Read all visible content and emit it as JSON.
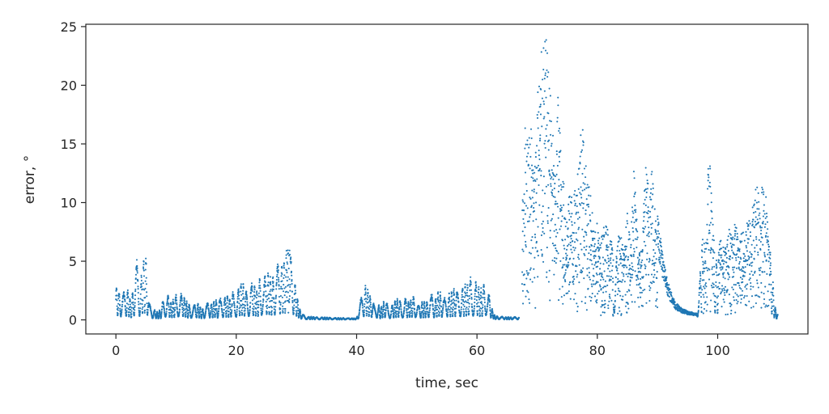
{
  "chart_data": {
    "type": "scatter",
    "title": "",
    "xlabel": "time, sec",
    "ylabel": "error, °",
    "xlim": [
      -5,
      115
    ],
    "ylim": [
      -1.2,
      25.2
    ],
    "x_ticks": [
      0,
      20,
      40,
      60,
      80,
      100
    ],
    "y_ticks": [
      0,
      5,
      10,
      15,
      20,
      25
    ],
    "grid": false,
    "legend": "none",
    "colors": {
      "series": "#1f77b4",
      "frame": "#262626"
    },
    "segments": [
      {
        "t": [
          0,
          0.5,
          1,
          1.5,
          2,
          2.5,
          3,
          3.5,
          4,
          4.5,
          5,
          5.5,
          6,
          6.5,
          7,
          7.5,
          8,
          8.5,
          9,
          9.5,
          10,
          10.5,
          11,
          11.5,
          12,
          12.5,
          13,
          13.5,
          14,
          14.5,
          15,
          15.5,
          16,
          16.5,
          17,
          17.5,
          18,
          18.5,
          19,
          19.5,
          20,
          20.5,
          21,
          21.5,
          22,
          22.5,
          23,
          23.5,
          24,
          24.5,
          25,
          25.5,
          26,
          26.5,
          27,
          27.5,
          28,
          28.5,
          29,
          29.5,
          30,
          30.5,
          31,
          31.5,
          32
        ],
        "peak": [
          3.1,
          2.5,
          2.6,
          2.3,
          2.8,
          1.5,
          3.2,
          5.3,
          2.5,
          5.5,
          5.6,
          1.4,
          1.2,
          0.8,
          0.6,
          1.0,
          2.0,
          2.5,
          1.5,
          1.8,
          2.2,
          2.4,
          2.3,
          1.9,
          1.4,
          1.2,
          1.3,
          1.5,
          1.2,
          0.9,
          1.3,
          1.6,
          1.4,
          1.8,
          1.5,
          2.0,
          1.9,
          2.2,
          1.8,
          2.5,
          2.1,
          2.9,
          3.3,
          2.6,
          2.8,
          3.4,
          3.0,
          2.5,
          4.0,
          3.2,
          4.4,
          3.8,
          3.5,
          4.3,
          5.0,
          4.7,
          5.5,
          6.2,
          6.0,
          4.0,
          2.5,
          1.0,
          0.5,
          0.3,
          0.2
        ]
      },
      {
        "t": [
          32,
          34,
          36,
          38,
          40,
          40.5,
          41,
          41.5,
          42,
          42.5,
          43,
          43.5,
          44,
          44.5,
          45,
          45.5,
          46,
          46.5,
          47,
          47.5,
          48,
          48.5,
          49,
          49.5,
          50,
          50.5,
          51,
          51.5,
          52,
          52.5,
          53,
          53.5,
          54,
          54.5,
          55,
          55.5,
          56,
          56.5,
          57,
          57.5,
          58,
          58.5,
          59,
          59.5,
          60,
          60.5,
          61,
          61.5,
          62,
          62.5,
          63,
          65,
          67
        ],
        "peak": [
          0.25,
          0.2,
          0.15,
          0.12,
          0.1,
          1.5,
          2.3,
          3.0,
          2.5,
          1.8,
          1.2,
          1.4,
          1.0,
          1.6,
          1.5,
          1.1,
          1.3,
          1.7,
          1.9,
          1.4,
          2.0,
          1.6,
          1.8,
          2.1,
          1.5,
          1.2,
          1.7,
          1.4,
          1.9,
          2.2,
          1.6,
          2.5,
          2.3,
          1.8,
          2.4,
          2.2,
          2.6,
          2.8,
          2.3,
          2.7,
          3.0,
          3.3,
          3.7,
          2.9,
          3.5,
          2.6,
          3.0,
          3.4,
          2.2,
          1.0,
          0.3,
          0.2,
          0.2
        ]
      },
      {
        "t": [
          67.5,
          68,
          68.5,
          69,
          69.5,
          70,
          70.5,
          71,
          71.5,
          72,
          72.5,
          73,
          73.5,
          74,
          74.5,
          75,
          75.5,
          76,
          76.5,
          77,
          77.5,
          78,
          78.5,
          79,
          79.5,
          80,
          80.5,
          81,
          81.5,
          82,
          82.5,
          83,
          83.5,
          84,
          84.5,
          85,
          85.5,
          86,
          86.5,
          87,
          87.5,
          88,
          88.5,
          89,
          89.5,
          90
        ],
        "peak": [
          9.0,
          16.8,
          16.0,
          17.0,
          12.5,
          19.5,
          22.0,
          24.0,
          24.0,
          21.0,
          17.5,
          11.5,
          20.5,
          13.5,
          11.5,
          9.0,
          11.5,
          10.5,
          11.5,
          15.5,
          18.3,
          13.5,
          12.0,
          10.5,
          7.0,
          8.5,
          6.5,
          8.2,
          8.5,
          7.5,
          6.8,
          4.5,
          7.3,
          7.0,
          5.5,
          10.0,
          6.0,
          14.1,
          9.0,
          6.0,
          7.0,
          13.5,
          12.0,
          13.7,
          10.5,
          9.0
        ]
      },
      {
        "t": [
          96.5,
          97,
          97.5,
          98,
          98.5,
          99,
          99.5,
          100,
          100.5,
          101,
          101.5,
          102,
          102.5,
          103,
          103.5,
          104,
          104.5,
          105,
          105.5,
          106,
          106.5,
          107,
          107.5,
          108,
          108.5,
          109,
          109.5,
          110
        ],
        "peak": [
          2.0,
          3.5,
          7.2,
          6.0,
          14.4,
          11.5,
          5.5,
          5.0,
          7.5,
          6.0,
          6.5,
          8.3,
          7.8,
          8.5,
          6.5,
          8.0,
          7.0,
          8.8,
          9.5,
          10.2,
          12.5,
          11.8,
          11.5,
          11.0,
          7.0,
          4.5,
          1.2,
          0.5
        ]
      }
    ],
    "decay": {
      "t": [
        90,
        91,
        92,
        93,
        94,
        95,
        96,
        96.5
      ],
      "error": [
        7.5,
        4.2,
        2.2,
        1.2,
        0.8,
        0.6,
        0.5,
        0.5
      ]
    }
  }
}
